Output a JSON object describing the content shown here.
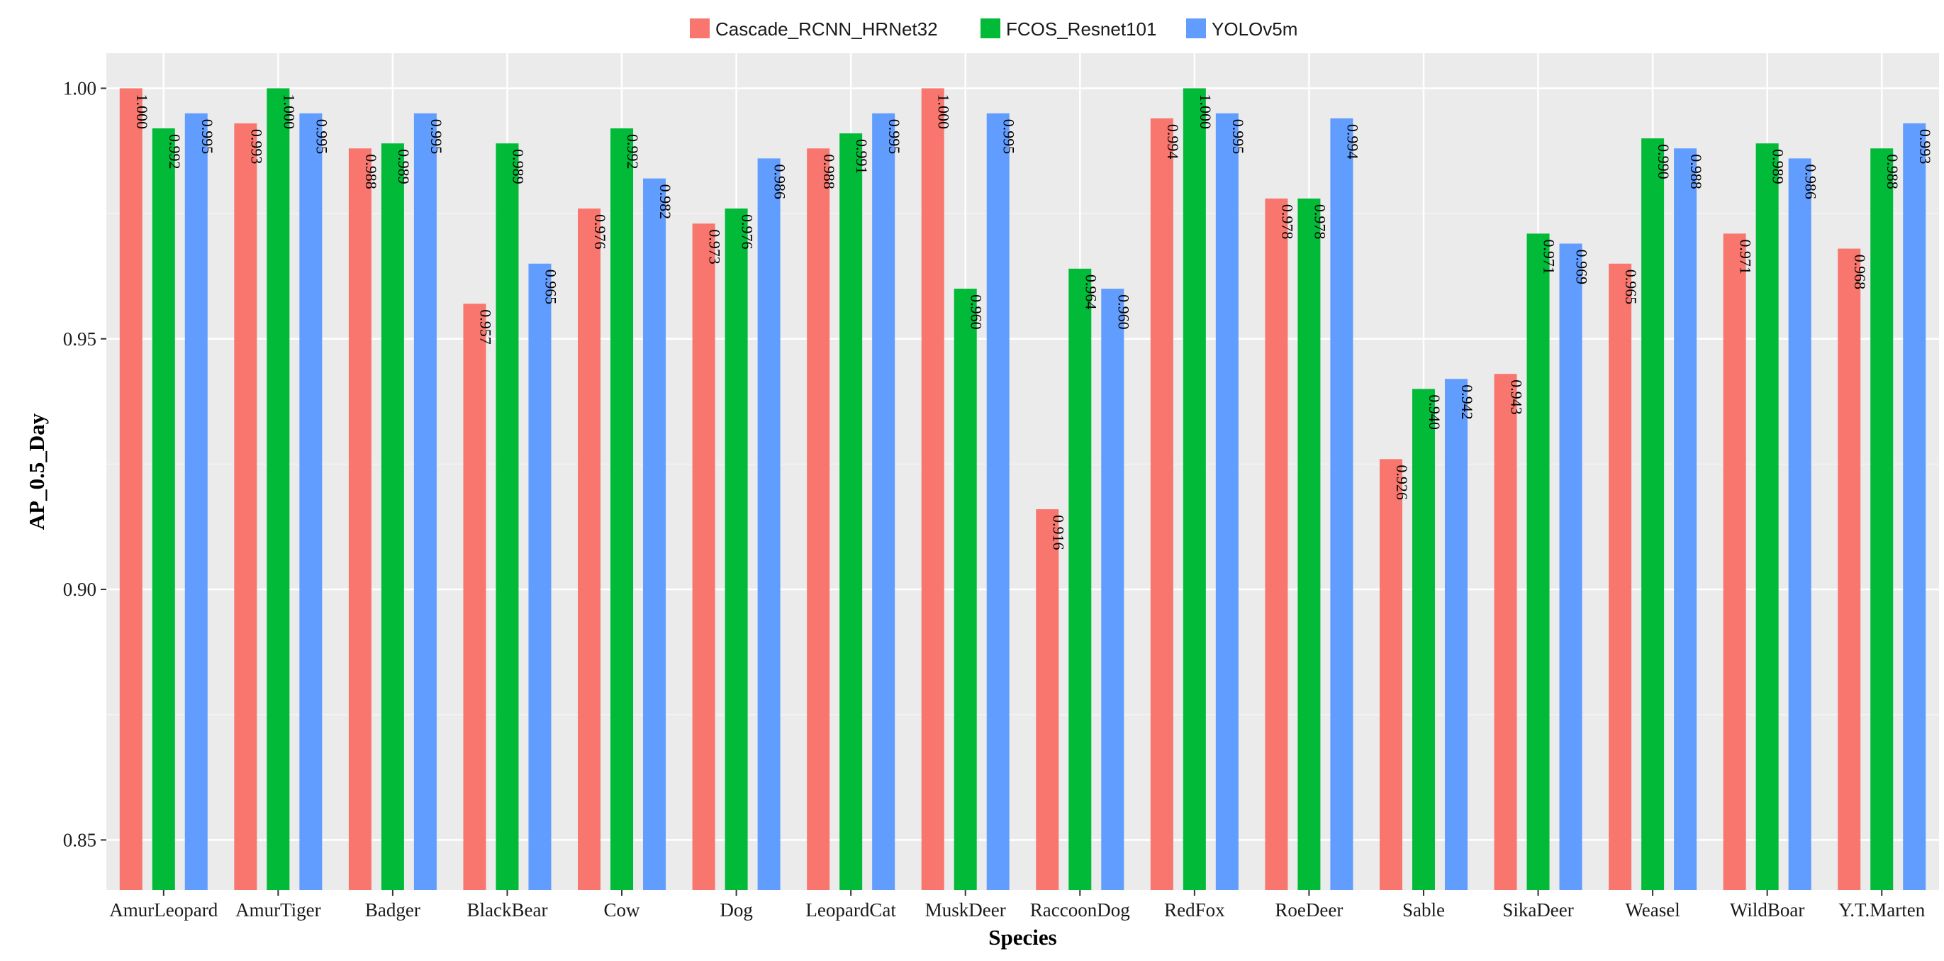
{
  "chart_data": {
    "type": "bar",
    "title": "",
    "xlabel": "Species",
    "ylabel": "AP_0.5_Day",
    "ylim": [
      0.84,
      1.007
    ],
    "yticks": [
      0.85,
      0.9,
      0.95,
      1.0
    ],
    "ytick_labels": [
      "0.85",
      "0.90",
      "0.95",
      "1.00"
    ],
    "grid": true,
    "legend_position": "top",
    "categories": [
      "AmurLeopard",
      "AmurTiger",
      "Badger",
      "BlackBear",
      "Cow",
      "Dog",
      "LeopardCat",
      "MuskDeer",
      "RaccoonDog",
      "RedFox",
      "RoeDeer",
      "Sable",
      "SikaDeer",
      "Weasel",
      "WildBoar",
      "Y.T.Marten"
    ],
    "series": [
      {
        "name": "Cascade_RCNN_HRNet32",
        "color": "#F8766D",
        "values": [
          1.0,
          0.993,
          0.988,
          0.957,
          0.976,
          0.973,
          0.988,
          1.0,
          0.916,
          0.994,
          0.978,
          0.926,
          0.943,
          0.965,
          0.971,
          0.968
        ],
        "labels": [
          "1.000",
          "0.993",
          "0.988",
          "0.957",
          "0.976",
          "0.973",
          "0.988",
          "1.000",
          "0.916",
          "0.994",
          "0.978",
          "0.926",
          "0.943",
          "0.965",
          "0.971",
          "0.968"
        ]
      },
      {
        "name": "FCOS_Resnet101",
        "color": "#00BA38",
        "values": [
          0.992,
          1.0,
          0.989,
          0.989,
          0.992,
          0.976,
          0.991,
          0.96,
          0.964,
          1.0,
          0.978,
          0.94,
          0.971,
          0.99,
          0.989,
          0.988
        ],
        "labels": [
          "0.992",
          "1.000",
          "0.989",
          "0.989",
          "0.992",
          "0.976",
          "0.991",
          "0.960",
          "0.964",
          "1.000",
          "0.978",
          "0.940",
          "0.971",
          "0.990",
          "0.989",
          "0.988"
        ]
      },
      {
        "name": "YOLOv5m",
        "color": "#619CFF",
        "values": [
          0.995,
          0.995,
          0.995,
          0.965,
          0.982,
          0.986,
          0.995,
          0.995,
          0.96,
          0.995,
          0.994,
          0.942,
          0.969,
          0.988,
          0.986,
          0.993
        ],
        "labels": [
          "0.995",
          "0.995",
          "0.995",
          "0.965",
          "0.982",
          "0.986",
          "0.995",
          "0.995",
          "0.960",
          "0.995",
          "0.994",
          "0.942",
          "0.969",
          "0.988",
          "0.986",
          "0.993"
        ]
      }
    ]
  },
  "colors": {
    "panel_background": "#EBEBEB",
    "grid_major": "#FFFFFF",
    "grid_minor": "#F4F4F4"
  }
}
